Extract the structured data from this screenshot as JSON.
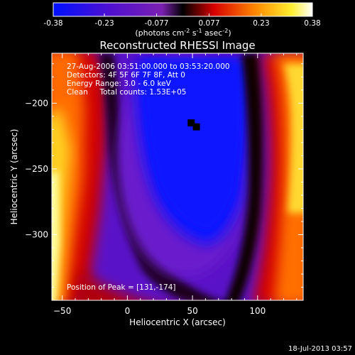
{
  "colorbar": {
    "ticks": [
      "-0.38",
      "-0.23",
      "-0.077",
      "0.077",
      "0.23",
      "0.38"
    ],
    "units_main": "(photons cm",
    "units_exp1": "-2",
    "units_mid": " s",
    "units_exp2": "-1",
    "units_mid2": " asec",
    "units_exp3": "-2",
    "units_end": ")",
    "range": [
      -0.38,
      0.38
    ]
  },
  "plot": {
    "title": "Reconstructed RHESSI Image",
    "info": [
      "27-Aug-2006 03:51:00.000 to 03:53:20.000",
      "Detectors: 4F 5F 6F 7F 8F, Att 0",
      "Energy Range: 3.0 - 6.0 keV",
      "Clean     Total counts: 1.53E+05"
    ],
    "peak_text": "Position of Peak = [131,-174]"
  },
  "footer": {
    "date": "18-Jul-2013 03:57"
  },
  "chart_data": {
    "type": "heatmap",
    "title": "Reconstructed RHESSI Image",
    "xlabel": "Heliocentric X (arcsec)",
    "ylabel": "Heliocentric Y (arcsec)",
    "xlim": [
      -58,
      135
    ],
    "ylim": [
      -350,
      -162
    ],
    "xticks": [
      -50,
      0,
      50,
      100
    ],
    "yticks": [
      -200,
      -250,
      -300
    ],
    "colormap": "blue-purple-black-red-yellow-white",
    "value_range": [
      -0.38,
      0.38
    ],
    "peak_position": [
      131,
      -174
    ],
    "marker_points": [
      [
        49,
        -215
      ],
      [
        53,
        -218
      ]
    ]
  }
}
